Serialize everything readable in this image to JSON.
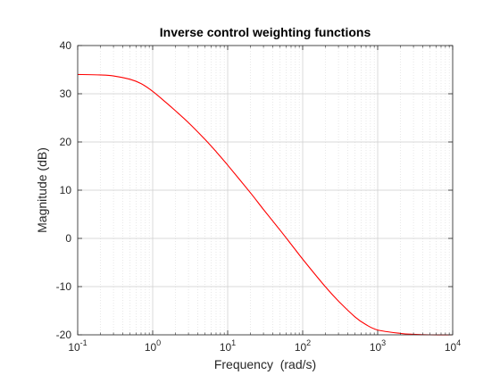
{
  "chart_data": {
    "type": "line",
    "title": "Inverse control weighting functions",
    "xlabel": "Frequency  (rad/s)",
    "ylabel": "Magnitude (dB)",
    "x_scale": "log",
    "xlim": [
      0.1,
      10000
    ],
    "ylim": [
      -20,
      40
    ],
    "x_ticks": [
      {
        "base": "10",
        "exp": "-1",
        "value": 0.1
      },
      {
        "base": "10",
        "exp": "0",
        "value": 1
      },
      {
        "base": "10",
        "exp": "1",
        "value": 10
      },
      {
        "base": "10",
        "exp": "2",
        "value": 100
      },
      {
        "base": "10",
        "exp": "3",
        "value": 1000
      },
      {
        "base": "10",
        "exp": "4",
        "value": 10000
      }
    ],
    "y_ticks": [
      "-20",
      "-10",
      "0",
      "10",
      "20",
      "30",
      "40"
    ],
    "grid": true,
    "minor_grid": true,
    "series": [
      {
        "color": "#ff0000",
        "x": [
          0.1,
          0.2,
          0.3,
          0.5,
          0.7,
          1,
          1.5,
          2,
          3,
          5,
          7,
          10,
          20,
          30,
          50,
          70,
          100,
          200,
          300,
          500,
          700,
          1000,
          2000,
          3000,
          5000,
          10000
        ],
        "y": [
          34.0,
          33.9,
          33.7,
          33.0,
          32.1,
          30.5,
          28.2,
          26.5,
          24.0,
          20.5,
          18.0,
          15.2,
          9.5,
          6.0,
          1.7,
          -1.2,
          -4.3,
          -10.0,
          -13.0,
          -16.3,
          -17.9,
          -19.0,
          -19.7,
          -19.9,
          -20.0,
          -20.0
        ]
      }
    ]
  }
}
